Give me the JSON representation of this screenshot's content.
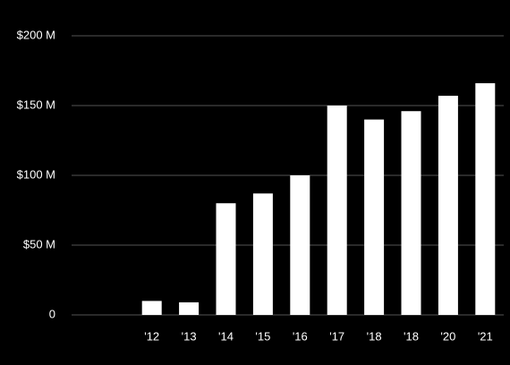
{
  "chart_data": {
    "type": "bar",
    "categories": [
      "'12",
      "'13",
      "'14",
      "'15",
      "'16",
      "'17",
      "'18",
      "'18",
      "'20",
      "'21"
    ],
    "values": [
      10,
      9,
      80,
      87,
      100,
      150,
      140,
      146,
      157,
      166
    ],
    "color": "#ffffff",
    "ylim": [
      0,
      200
    ],
    "yticks": [
      0,
      {
        "value": 50,
        "label": "$50 M"
      },
      {
        "value": 100,
        "label": "$100 M"
      },
      {
        "value": 150,
        "label": "$150 M"
      },
      {
        "value": 200,
        "label": "$200 M"
      }
    ],
    "grid": true
  }
}
